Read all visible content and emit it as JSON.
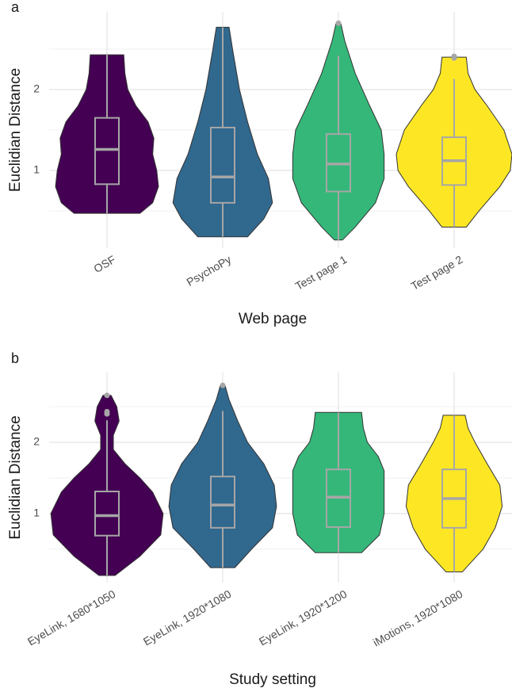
{
  "chart_data": [
    {
      "type": "violin",
      "tag": "a",
      "xlabel": "Web page",
      "ylabel": "Euclidian Distance",
      "categories": [
        "OSF",
        "PsychoPy",
        "Test page 1",
        "Test page 2"
      ],
      "colors": [
        "#440154",
        "#31688e",
        "#35b779",
        "#fde725"
      ],
      "ylim": [
        0.04,
        2.96
      ],
      "yticks": [
        1,
        2
      ],
      "minor_yticks": [
        0.5,
        1.5,
        2.5
      ],
      "grid": true,
      "boxes": [
        {
          "whisker_low": 0.47,
          "q1": 0.83,
          "median": 1.26,
          "q3": 1.65,
          "whisker_high": 2.43,
          "outliers": []
        },
        {
          "whisker_low": 0.18,
          "q1": 0.6,
          "median": 0.92,
          "q3": 1.53,
          "whisker_high": 2.77,
          "outliers": []
        },
        {
          "whisker_low": 0.14,
          "q1": 0.74,
          "median": 1.08,
          "q3": 1.45,
          "whisker_high": 2.42,
          "outliers": [
            2.82
          ]
        },
        {
          "whisker_low": 0.3,
          "q1": 0.82,
          "median": 1.12,
          "q3": 1.41,
          "whisker_high": 2.13,
          "outliers": [
            2.39,
            2.41
          ]
        }
      ],
      "violins": [
        {
          "y": [
            2.43,
            2.2,
            2.0,
            1.8,
            1.6,
            1.4,
            1.2,
            1.0,
            0.8,
            0.6,
            0.47
          ],
          "density": [
            0.29,
            0.31,
            0.36,
            0.5,
            0.71,
            0.81,
            0.79,
            0.86,
            0.89,
            0.79,
            0.57
          ]
        },
        {
          "y": [
            2.77,
            2.5,
            2.0,
            1.6,
            1.2,
            0.9,
            0.6,
            0.4,
            0.18
          ],
          "density": [
            0.11,
            0.17,
            0.29,
            0.43,
            0.6,
            0.79,
            0.86,
            0.71,
            0.43
          ]
        },
        {
          "y": [
            2.82,
            2.6,
            2.2,
            1.8,
            1.5,
            1.2,
            0.9,
            0.6,
            0.3,
            0.14
          ],
          "density": [
            0.04,
            0.11,
            0.29,
            0.54,
            0.74,
            0.79,
            0.79,
            0.64,
            0.29,
            0.07
          ]
        },
        {
          "y": [
            2.4,
            2.2,
            2.0,
            1.8,
            1.5,
            1.2,
            1.0,
            0.8,
            0.5,
            0.3
          ],
          "density": [
            0.21,
            0.24,
            0.36,
            0.57,
            0.86,
            1.0,
            0.97,
            0.79,
            0.43,
            0.21
          ]
        }
      ]
    },
    {
      "type": "violin",
      "tag": "b",
      "xlabel": "Study setting",
      "ylabel": "Euclidian Distance",
      "categories": [
        "EyeLink, 1680*1050",
        "EyeLink, 1920*1080",
        "EyeLink, 1920*1200",
        "iMotions, 1920*1080"
      ],
      "colors": [
        "#440154",
        "#31688e",
        "#35b779",
        "#fde725"
      ],
      "ylim": [
        0.03,
        2.98
      ],
      "yticks": [
        1,
        2
      ],
      "minor_yticks": [
        0.5,
        1.5,
        2.5
      ],
      "grid": true,
      "boxes": [
        {
          "whisker_low": 0.13,
          "q1": 0.69,
          "median": 0.97,
          "q3": 1.31,
          "whisker_high": 2.31,
          "outliers": [
            2.66,
            2.43,
            2.4
          ]
        },
        {
          "whisker_low": 0.24,
          "q1": 0.8,
          "median": 1.12,
          "q3": 1.52,
          "whisker_high": 2.44,
          "outliers": [
            2.8
          ]
        },
        {
          "whisker_low": 0.45,
          "q1": 0.81,
          "median": 1.23,
          "q3": 1.62,
          "whisker_high": 2.42,
          "outliers": []
        },
        {
          "whisker_low": 0.18,
          "q1": 0.8,
          "median": 1.21,
          "q3": 1.62,
          "whisker_high": 2.38,
          "outliers": []
        }
      ],
      "violins": [
        {
          "y": [
            2.66,
            2.5,
            2.3,
            2.1,
            1.9,
            1.7,
            1.5,
            1.3,
            1.0,
            0.7,
            0.4,
            0.13
          ],
          "density": [
            0.07,
            0.17,
            0.21,
            0.11,
            0.11,
            0.31,
            0.57,
            0.79,
            0.97,
            0.93,
            0.57,
            0.14
          ]
        },
        {
          "y": [
            2.8,
            2.6,
            2.3,
            2.0,
            1.7,
            1.4,
            1.1,
            0.8,
            0.5,
            0.24
          ],
          "density": [
            0.04,
            0.11,
            0.26,
            0.43,
            0.71,
            0.89,
            0.93,
            0.86,
            0.5,
            0.21
          ]
        },
        {
          "y": [
            2.42,
            2.2,
            2.0,
            1.8,
            1.6,
            1.3,
            1.0,
            0.7,
            0.45
          ],
          "density": [
            0.4,
            0.43,
            0.5,
            0.69,
            0.79,
            0.79,
            0.79,
            0.71,
            0.4
          ]
        },
        {
          "y": [
            2.38,
            2.2,
            2.0,
            1.7,
            1.4,
            1.1,
            0.8,
            0.5,
            0.18
          ],
          "density": [
            0.19,
            0.24,
            0.36,
            0.57,
            0.79,
            0.83,
            0.71,
            0.5,
            0.14
          ]
        }
      ]
    }
  ]
}
